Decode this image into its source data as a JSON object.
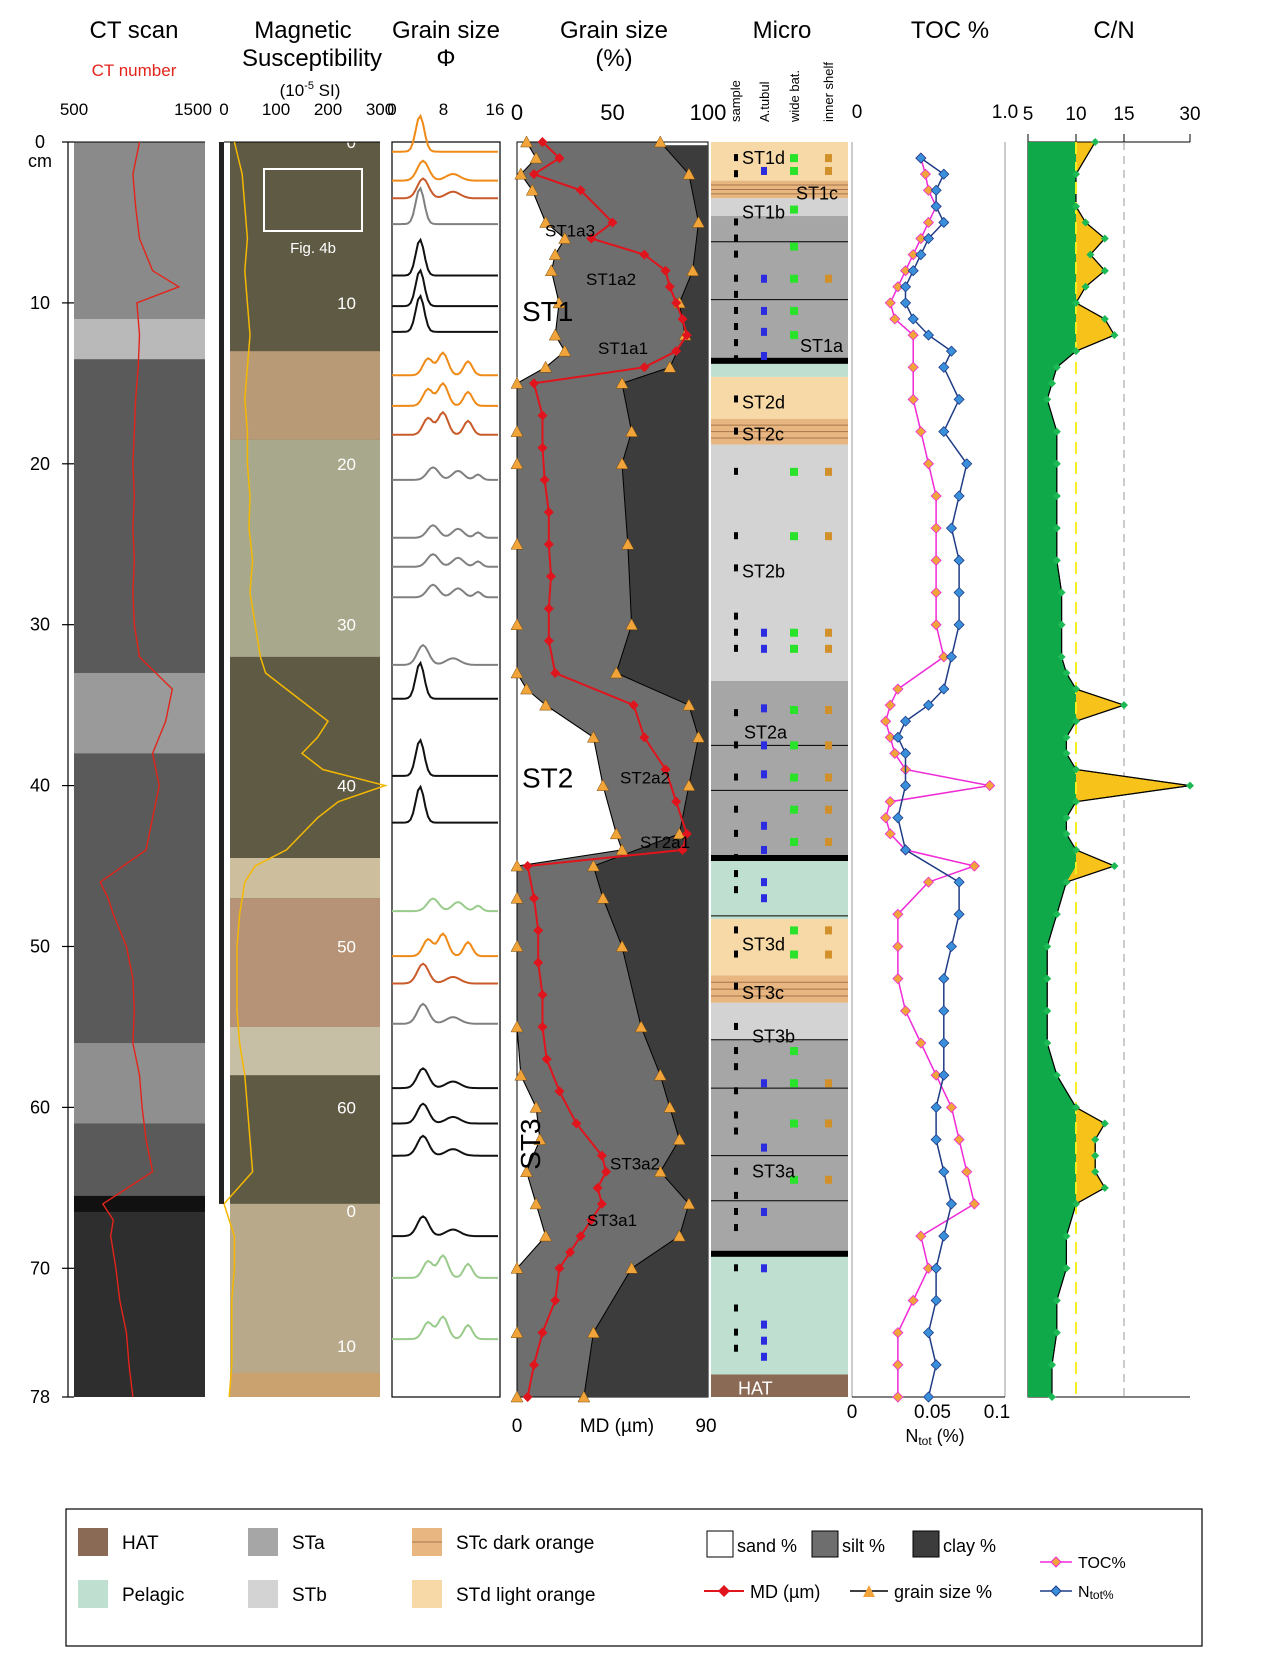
{
  "headers": {
    "ct": "CT scan",
    "ct_sub": "CT number",
    "mag1": "Magnetic",
    "mag2": "Susceptibility",
    "mag_unit": "(10",
    "mag_unit_exp": "-5",
    "mag_unit_end": " SI)",
    "gsphi": "Grain size",
    "phi": "Φ",
    "gspct": "Grain size",
    "pct": "(%)",
    "micro": "Micro",
    "toc": "TOC %",
    "cn": "C/N"
  },
  "depth_axis": {
    "unit": "cm",
    "ticks": [
      "0",
      "10",
      "20",
      "30",
      "40",
      "50",
      "60",
      "70",
      "78"
    ]
  },
  "ct_axis": [
    "500",
    "1500"
  ],
  "mag_axis": [
    "0",
    "100",
    "200",
    "300"
  ],
  "phi_axis": [
    "0",
    "8",
    "16"
  ],
  "gs_axis_top": [
    "0",
    "50",
    "100"
  ],
  "gs_axis_bottom": [
    "0",
    "MD (µm)",
    "90"
  ],
  "toc_axis_top": [
    "0",
    "1.0"
  ],
  "n_axis_bottom": [
    "0",
    "0.05",
    "0.1"
  ],
  "n_label": "N",
  "n_label_sub": "tot",
  "n_label_end": " (%)",
  "cn_axis": [
    "5",
    "10",
    "15",
    "30"
  ],
  "micro_cols": [
    "sample",
    "A.tubul",
    "wide bat.",
    "inner shelf"
  ],
  "core_labels": {
    "fig": "Fig. 4b",
    "depths": [
      "0",
      "10",
      "20",
      "30",
      "40",
      "50",
      "60",
      "0",
      "10"
    ]
  },
  "units_gs": [
    {
      "label": "ST1",
      "depth": 10.5
    },
    {
      "label": "ST2",
      "depth": 39.5
    },
    {
      "label": "ST3",
      "depth": 64.5
    }
  ],
  "sub_units_gs": [
    {
      "label": "ST1a3",
      "depth": 5.5
    },
    {
      "label": "ST1a2",
      "depth": 8.5
    },
    {
      "label": "ST1a1",
      "depth": 12.8
    },
    {
      "label": "ST2a2",
      "depth": 39.5
    },
    {
      "label": "ST2a1",
      "depth": 43.5
    },
    {
      "label": "ST3a2",
      "depth": 63.5
    },
    {
      "label": "ST3a1",
      "depth": 67
    }
  ],
  "micro_labels": [
    {
      "label": "ST1d",
      "depth": 0.8
    },
    {
      "label": "ST1c",
      "depth": 3
    },
    {
      "label": "ST1b",
      "depth": 4.2
    },
    {
      "label": "ST1a",
      "depth": 12.5
    },
    {
      "label": "ST2d",
      "depth": 16
    },
    {
      "label": "ST2c",
      "depth": 18
    },
    {
      "label": "ST2b",
      "depth": 26.5
    },
    {
      "label": "ST2a",
      "depth": 36.5
    },
    {
      "label": "ST3d",
      "depth": 49.7
    },
    {
      "label": "ST3c",
      "depth": 52.7
    },
    {
      "label": "ST3b",
      "depth": 55.4
    },
    {
      "label": "ST3a",
      "depth": 63.8
    },
    {
      "label": "HAT",
      "depth": 77.3
    }
  ],
  "facies": [
    {
      "top": 0,
      "bottom": 2.4,
      "type": "STd"
    },
    {
      "top": 2.4,
      "bottom": 3.5,
      "type": "STc"
    },
    {
      "top": 3.5,
      "bottom": 4.6,
      "type": "STb"
    },
    {
      "top": 4.6,
      "bottom": 13.6,
      "type": "STa"
    },
    {
      "top": 13.6,
      "bottom": 14.6,
      "type": "Pelagic"
    },
    {
      "top": 14.6,
      "bottom": 17.2,
      "type": "STd"
    },
    {
      "top": 17.2,
      "bottom": 18.8,
      "type": "STc"
    },
    {
      "top": 18.8,
      "bottom": 33.5,
      "type": "STb"
    },
    {
      "top": 33.5,
      "bottom": 44.5,
      "type": "STa"
    },
    {
      "top": 44.5,
      "bottom": 48.3,
      "type": "Pelagic"
    },
    {
      "top": 48.3,
      "bottom": 51.8,
      "type": "STd"
    },
    {
      "top": 51.8,
      "bottom": 53.5,
      "type": "STc"
    },
    {
      "top": 53.5,
      "bottom": 55.8,
      "type": "STb"
    },
    {
      "top": 55.8,
      "bottom": 69.1,
      "type": "STa"
    },
    {
      "top": 69.1,
      "bottom": 76.6,
      "type": "Pelagic"
    },
    {
      "top": 76.6,
      "bottom": 78,
      "type": "HAT"
    }
  ],
  "legend": {
    "facies": [
      {
        "label": "HAT",
        "color": "#8b6a55"
      },
      {
        "label": "Pelagic",
        "color": "#bfe0d0"
      },
      {
        "label": "STa",
        "color": "#a6a6a6"
      },
      {
        "label": "STb",
        "color": "#d3d3d3"
      },
      {
        "label": "STc dark orange",
        "color": "#e8b781"
      },
      {
        "label": "STd light orange",
        "color": "#f6d9a6"
      }
    ],
    "series": [
      {
        "label": "sand %"
      },
      {
        "label": "silt %"
      },
      {
        "label": "clay %"
      },
      {
        "label": "MD (µm)"
      },
      {
        "label": "grain size %"
      },
      {
        "label": "TOC%"
      },
      {
        "label": "N"
      },
      {
        "label": "tot%"
      }
    ]
  },
  "colors": {
    "ct_line": "#e3241b",
    "mag_line": "#f5b800",
    "silt": "#6e6e6e",
    "clay": "#3c3c3c",
    "md": "#e0141c",
    "gs_marker": "#f0a43a",
    "toc": "#ef2ad6",
    "toc_marker": "#f0a43a",
    "ntot": "#1f3c86",
    "ntot_marker": "#3a8fdb",
    "cn_green": "#10a94a",
    "cn_yellow": "#f7c31a",
    "cn_ref": "#f4ee1c",
    "micro_sample": "#000000",
    "micro_atubul": "#2b2be0",
    "micro_wide": "#28e32a",
    "micro_inner": "#d2902a"
  },
  "chart_data": [
    {
      "type": "line",
      "title": "CT scan",
      "subtitle": "CT number",
      "xlim": [
        500,
        1500
      ],
      "depth": [
        0,
        2,
        4,
        6,
        8,
        9,
        10,
        12,
        14,
        16,
        18,
        20,
        22,
        24,
        26,
        28,
        30,
        32,
        34,
        36,
        38,
        40,
        42,
        44,
        46,
        47,
        48,
        50,
        52,
        54,
        56,
        58,
        60,
        62,
        64,
        66,
        67,
        68,
        70,
        72,
        74,
        76,
        78
      ],
      "values": [
        1000,
        950,
        970,
        1000,
        1100,
        1300,
        980,
        1000,
        990,
        970,
        960,
        950,
        960,
        950,
        960,
        950,
        960,
        1000,
        1250,
        1200,
        1100,
        1150,
        1100,
        1050,
        700,
        760,
        800,
        900,
        950,
        960,
        950,
        1000,
        1020,
        1050,
        1100,
        720,
        800,
        780,
        820,
        850,
        900,
        920,
        950
      ]
    },
    {
      "type": "line",
      "title": "Magnetic Susceptibility",
      "unit": "10^-5 SI",
      "xlim": [
        0,
        300
      ],
      "depth": [
        0,
        2,
        4,
        6,
        8,
        10,
        12,
        14,
        16,
        18,
        20,
        22,
        24,
        26,
        28,
        30,
        32,
        33,
        34,
        35,
        36,
        37,
        38,
        39,
        40,
        41,
        42,
        43,
        44,
        45,
        46,
        48,
        50,
        52,
        54,
        56,
        58,
        60,
        62,
        64,
        66,
        68,
        70,
        72,
        74,
        76,
        78
      ],
      "values": [
        20,
        35,
        40,
        45,
        40,
        45,
        50,
        45,
        40,
        45,
        45,
        50,
        48,
        55,
        50,
        60,
        70,
        80,
        120,
        160,
        200,
        180,
        150,
        190,
        310,
        220,
        180,
        150,
        120,
        60,
        40,
        30,
        25,
        25,
        25,
        30,
        40,
        45,
        50,
        55,
        0,
        20,
        20,
        15,
        15,
        15,
        10
      ]
    },
    {
      "type": "line",
      "title": "Grain size (%)",
      "xlim": [
        0,
        100
      ],
      "series": [
        {
          "name": "sand/silt boundary",
          "depth": [
            0,
            1,
            2,
            3,
            5,
            6,
            7,
            8,
            10,
            12,
            13,
            14,
            15,
            18,
            20,
            25,
            30,
            33,
            34,
            35,
            37,
            40,
            43,
            44,
            45,
            47,
            50,
            55,
            58,
            60,
            62,
            64,
            66,
            68,
            70,
            74,
            78
          ],
          "values": [
            5,
            10,
            2,
            8,
            15,
            25,
            20,
            18,
            22,
            20,
            25,
            15,
            0,
            0,
            0,
            0,
            0,
            0,
            5,
            15,
            40,
            45,
            52,
            55,
            0,
            0,
            0,
            0,
            2,
            10,
            12,
            5,
            10,
            15,
            0,
            0,
            0
          ]
        },
        {
          "name": "silt/clay boundary",
          "depth": [
            0,
            2,
            5,
            8,
            10,
            12,
            14,
            15,
            18,
            20,
            25,
            30,
            33,
            35,
            37,
            40,
            43,
            45,
            47,
            50,
            55,
            58,
            60,
            62,
            64,
            66,
            68,
            70,
            74,
            78
          ],
          "values": [
            75,
            90,
            95,
            92,
            85,
            88,
            80,
            55,
            60,
            55,
            58,
            60,
            52,
            90,
            95,
            90,
            85,
            40,
            45,
            55,
            65,
            75,
            80,
            85,
            75,
            90,
            85,
            60,
            40,
            35
          ]
        }
      ]
    },
    {
      "type": "line",
      "title": "MD (µm)",
      "xlim": [
        0,
        90
      ],
      "depth": [
        0,
        1,
        2,
        3,
        5,
        6,
        7,
        8,
        9,
        10,
        11,
        12,
        13,
        14,
        15,
        17,
        19,
        21,
        23,
        25,
        27,
        29,
        31,
        33,
        35,
        37,
        39,
        41,
        43,
        44,
        45,
        47,
        49,
        51,
        53,
        55,
        57,
        59,
        61,
        63,
        64,
        65,
        66,
        67,
        68,
        69,
        70,
        72,
        74,
        76,
        78
      ],
      "values": [
        12,
        20,
        8,
        30,
        45,
        35,
        60,
        70,
        72,
        75,
        78,
        80,
        75,
        60,
        8,
        12,
        12,
        13,
        15,
        15,
        16,
        15,
        15,
        18,
        55,
        60,
        70,
        75,
        80,
        78,
        5,
        8,
        10,
        10,
        12,
        12,
        14,
        20,
        28,
        40,
        42,
        38,
        40,
        35,
        30,
        25,
        20,
        18,
        12,
        8,
        5
      ]
    },
    {
      "type": "line",
      "title": "TOC %",
      "xlim": [
        0,
        1.0
      ],
      "series": [
        {
          "name": "TOC%",
          "depth": [
            1,
            2,
            3,
            4,
            5,
            6,
            7,
            8,
            9,
            10,
            11,
            12,
            14,
            16,
            18,
            20,
            22,
            24,
            26,
            28,
            30,
            32,
            34,
            35,
            36,
            37,
            38,
            39,
            40,
            41,
            42,
            43,
            44,
            45,
            46,
            48,
            50,
            52,
            54,
            56,
            58,
            60,
            62,
            64,
            66,
            68,
            70,
            72,
            74,
            76,
            78
          ],
          "values": [
            0.45,
            0.48,
            0.5,
            0.55,
            0.5,
            0.45,
            0.4,
            0.35,
            0.3,
            0.25,
            0.28,
            0.4,
            0.4,
            0.4,
            0.45,
            0.5,
            0.55,
            0.55,
            0.55,
            0.55,
            0.55,
            0.6,
            0.3,
            0.25,
            0.22,
            0.25,
            0.28,
            0.35,
            0.9,
            0.25,
            0.22,
            0.25,
            0.35,
            0.8,
            0.5,
            0.3,
            0.3,
            0.3,
            0.35,
            0.45,
            0.55,
            0.65,
            0.7,
            0.75,
            0.8,
            0.45,
            0.5,
            0.4,
            0.3,
            0.3,
            0.3
          ]
        },
        {
          "name": "Ntot%",
          "depth": [
            1,
            2,
            3,
            4,
            5,
            6,
            7,
            8,
            9,
            10,
            11,
            12,
            13,
            14,
            16,
            18,
            20,
            22,
            24,
            26,
            28,
            30,
            32,
            34,
            35,
            36,
            37,
            38,
            40,
            42,
            44,
            46,
            48,
            50,
            52,
            54,
            56,
            58,
            60,
            62,
            64,
            66,
            68,
            70,
            72,
            74,
            76,
            78
          ],
          "values": [
            0.045,
            0.06,
            0.055,
            0.055,
            0.06,
            0.05,
            0.045,
            0.04,
            0.035,
            0.035,
            0.04,
            0.05,
            0.065,
            0.06,
            0.07,
            0.06,
            0.075,
            0.07,
            0.065,
            0.07,
            0.07,
            0.07,
            0.065,
            0.06,
            0.05,
            0.035,
            0.03,
            0.035,
            0.035,
            0.03,
            0.035,
            0.07,
            0.07,
            0.065,
            0.06,
            0.06,
            0.06,
            0.06,
            0.055,
            0.055,
            0.06,
            0.065,
            0.06,
            0.055,
            0.055,
            0.05,
            0.055,
            0.05
          ]
        }
      ]
    },
    {
      "type": "area",
      "title": "C/N",
      "xlim": [
        5,
        30
      ],
      "depth": [
        0,
        2,
        4,
        5,
        6,
        7,
        8,
        9,
        10,
        11,
        12,
        13,
        14,
        15,
        16,
        18,
        20,
        22,
        24,
        26,
        28,
        30,
        32,
        33,
        34,
        35,
        36,
        37,
        38,
        39,
        40,
        41,
        42,
        43,
        44,
        45,
        46,
        48,
        50,
        52,
        54,
        56,
        58,
        60,
        61,
        62,
        63,
        64,
        65,
        66,
        68,
        70,
        72,
        74,
        76,
        78
      ],
      "values": [
        12,
        10,
        10,
        11,
        13,
        11.5,
        13,
        11,
        10,
        13,
        14,
        10,
        8,
        7.5,
        7,
        8,
        8,
        8,
        8,
        8,
        8.5,
        8.5,
        8.5,
        9,
        10,
        15,
        10,
        9,
        9,
        10,
        30,
        10,
        9,
        9,
        10,
        14,
        9,
        8,
        7,
        7,
        7,
        7,
        8,
        10,
        13,
        12,
        12,
        12,
        13,
        10,
        9,
        9,
        8,
        8,
        7.5,
        7.5
      ]
    }
  ]
}
